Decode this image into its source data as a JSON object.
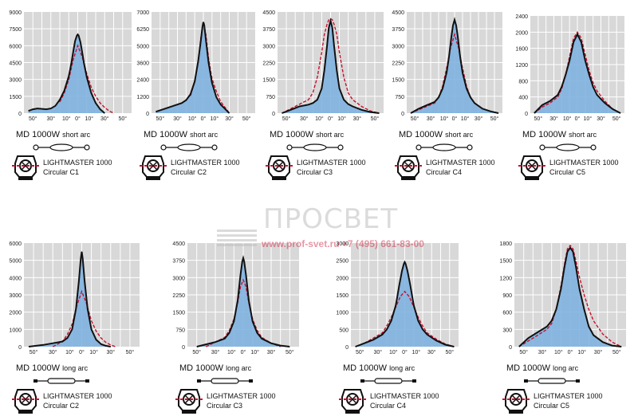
{
  "watermark": {
    "brand": "ПРОСВЕТ",
    "contact": "www.prof-svet.ru +7 (495) 661-83-00"
  },
  "colors": {
    "plot_bg": "#d8d8d8",
    "grid": "#ffffff",
    "fill": "#7fb3e0",
    "solid": "#111111",
    "dashed": "#c8102e",
    "watermark": "#bfbfbf"
  },
  "chart_data": [
    {
      "type": "area",
      "model": "MD 1000W",
      "arc": "short arc",
      "fixture": "LIGHTMASTER 1000",
      "reflector": "Circular C1",
      "lamp_icon": "short-arc-lamp-icon",
      "fixture_icon": "lightmaster-fixture-icon",
      "y_ticks": [
        0,
        1500,
        3000,
        4500,
        6000,
        7500,
        9000
      ],
      "x_ticks": [
        "50°",
        "30°",
        "10°",
        "0°",
        "10°",
        "30°",
        "50°"
      ],
      "ylim": [
        0,
        9000
      ],
      "xlim": [
        -60,
        60
      ],
      "series": [
        {
          "style": "solid",
          "x": [
            -55,
            -50,
            -45,
            -40,
            -35,
            -30,
            -25,
            -20,
            -15,
            -10,
            -7,
            -5,
            -3,
            -1,
            0,
            1,
            3,
            5,
            7,
            10,
            15,
            20,
            25,
            30
          ],
          "values": [
            200,
            350,
            420,
            380,
            350,
            420,
            650,
            1200,
            2000,
            3300,
            4500,
            5500,
            6400,
            6900,
            7000,
            6900,
            6300,
            5400,
            4400,
            3200,
            1800,
            900,
            350,
            0
          ]
        },
        {
          "style": "dashed",
          "x": [
            -20,
            -15,
            -10,
            -5,
            0,
            5,
            10,
            15,
            20,
            25,
            30,
            35,
            40
          ],
          "values": [
            1000,
            1800,
            3000,
            4800,
            6000,
            5000,
            3500,
            2300,
            1500,
            900,
            500,
            200,
            0
          ]
        }
      ]
    },
    {
      "type": "area",
      "model": "MD 1000W",
      "arc": "short arc",
      "fixture": "LIGHTMASTER 1000",
      "reflector": "Circular C2",
      "lamp_icon": "short-arc-lamp-icon",
      "fixture_icon": "lightmaster-fixture-icon",
      "y_ticks": [
        0,
        1200,
        2400,
        3600,
        5000,
        6250,
        7000
      ],
      "x_ticks": [
        "50°",
        "30°",
        "10°",
        "0°",
        "10°",
        "30°",
        "50°"
      ],
      "ylim": [
        0,
        7000
      ],
      "xlim": [
        -60,
        60
      ],
      "series": [
        {
          "style": "solid",
          "x": [
            -55,
            -45,
            -35,
            -25,
            -20,
            -15,
            -10,
            -6,
            -3,
            -1,
            0,
            1,
            3,
            6,
            10,
            15,
            20,
            25,
            30
          ],
          "values": [
            100,
            300,
            500,
            700,
            900,
            1300,
            2200,
            3600,
            5000,
            6000,
            6300,
            6100,
            5000,
            3500,
            2100,
            1100,
            600,
            300,
            0
          ]
        },
        {
          "style": "dashed",
          "x": [
            -15,
            -10,
            -6,
            -3,
            0,
            3,
            6,
            10,
            15,
            20,
            25,
            30
          ],
          "values": [
            1200,
            2200,
            3500,
            5200,
            6300,
            5400,
            3800,
            2400,
            1500,
            800,
            400,
            0
          ]
        }
      ]
    },
    {
      "type": "area",
      "model": "MD 1000W",
      "arc": "short arc",
      "fixture": "LIGHTMASTER 1000",
      "reflector": "Circular C3",
      "lamp_icon": "short-arc-lamp-icon",
      "fixture_icon": "lightmaster-fixture-icon",
      "y_ticks": [
        0,
        750,
        1500,
        2250,
        3000,
        3750,
        4500
      ],
      "x_ticks": [
        "50°",
        "30°",
        "10°",
        "0°",
        "10°",
        "30°",
        "50°"
      ],
      "ylim": [
        0,
        4500
      ],
      "xlim": [
        -60,
        60
      ],
      "series": [
        {
          "style": "solid",
          "x": [
            -55,
            -45,
            -35,
            -25,
            -20,
            -15,
            -10,
            -7,
            -4,
            -2,
            0,
            2,
            4,
            7,
            10,
            15,
            20,
            25,
            35,
            45,
            55
          ],
          "values": [
            0,
            150,
            300,
            380,
            450,
            600,
            1100,
            1900,
            3000,
            3800,
            4100,
            3800,
            3000,
            1900,
            1100,
            600,
            400,
            300,
            150,
            50,
            0
          ]
        },
        {
          "style": "dashed",
          "x": [
            -55,
            -45,
            -35,
            -25,
            -20,
            -15,
            -10,
            -7,
            -4,
            -2,
            0,
            2,
            4,
            7,
            10,
            15,
            20,
            25,
            35,
            45,
            55
          ],
          "values": [
            0,
            200,
            400,
            600,
            900,
            1600,
            2700,
            3500,
            3950,
            4150,
            4200,
            4150,
            3950,
            3500,
            2700,
            1600,
            900,
            600,
            300,
            100,
            0
          ]
        }
      ]
    },
    {
      "type": "area",
      "model": "MD 1000W",
      "arc": "short arc",
      "fixture": "LIGHTMASTER 1000",
      "reflector": "Circular C4",
      "lamp_icon": "short-arc-lamp-icon",
      "fixture_icon": "lightmaster-fixture-icon",
      "y_ticks": [
        0,
        750,
        1500,
        2250,
        3000,
        3750,
        4500
      ],
      "x_ticks": [
        "50°",
        "30°",
        "10°",
        "0°",
        "10°",
        "30°",
        "50°"
      ],
      "ylim": [
        0,
        4500
      ],
      "xlim": [
        -60,
        60
      ],
      "series": [
        {
          "style": "solid",
          "x": [
            -55,
            -45,
            -35,
            -25,
            -20,
            -15,
            -10,
            -7,
            -4,
            -2,
            0,
            2,
            4,
            7,
            10,
            15,
            20,
            25,
            35,
            45,
            55
          ],
          "values": [
            0,
            200,
            350,
            500,
            700,
            1100,
            1800,
            2500,
            3400,
            3900,
            4150,
            3900,
            3400,
            2500,
            1800,
            1100,
            700,
            450,
            200,
            80,
            0
          ]
        },
        {
          "style": "dashed",
          "x": [
            -55,
            -45,
            -35,
            -25,
            -20,
            -15,
            -10,
            -5,
            0,
            5,
            10,
            15,
            20,
            25,
            35,
            45,
            55
          ],
          "values": [
            0,
            150,
            300,
            450,
            700,
            1200,
            2000,
            2900,
            3500,
            2900,
            2000,
            1200,
            700,
            450,
            200,
            80,
            0
          ]
        }
      ]
    },
    {
      "type": "area",
      "model": "MD 1000W",
      "arc": "short arc",
      "fixture": "LIGHTMASTER 1000",
      "reflector": "Circular C5",
      "lamp_icon": "short-arc-lamp-icon",
      "fixture_icon": "lightmaster-fixture-icon",
      "y_ticks": [
        0,
        400,
        800,
        1200,
        1600,
        2000,
        2400
      ],
      "x_ticks": [
        "50°",
        "30°",
        "10°",
        "0°",
        "10°",
        "30°",
        "50°"
      ],
      "ylim": [
        0,
        2400
      ],
      "xlim": [
        -60,
        60
      ],
      "series": [
        {
          "style": "solid",
          "x": [
            -55,
            -45,
            -35,
            -25,
            -20,
            -15,
            -10,
            -5,
            0,
            5,
            10,
            15,
            20,
            25,
            35,
            45,
            55
          ],
          "values": [
            0,
            200,
            300,
            450,
            650,
            950,
            1300,
            1750,
            1950,
            1750,
            1300,
            950,
            650,
            450,
            250,
            100,
            0
          ]
        },
        {
          "style": "dashed",
          "x": [
            -55,
            -45,
            -35,
            -25,
            -20,
            -15,
            -10,
            -5,
            0,
            5,
            10,
            15,
            20,
            25,
            35,
            45,
            55
          ],
          "values": [
            0,
            150,
            250,
            400,
            600,
            950,
            1400,
            1850,
            2000,
            1850,
            1450,
            1050,
            750,
            550,
            300,
            100,
            0
          ]
        }
      ]
    },
    {
      "type": "area",
      "model": "MD 1000W",
      "arc": "long arc",
      "fixture": "LIGHTMASTER 1000",
      "reflector": "Circular C2",
      "lamp_icon": "long-arc-lamp-icon",
      "fixture_icon": "lightmaster-fixture-icon",
      "y_ticks": [
        0,
        1000,
        2000,
        3000,
        4000,
        5000,
        6000
      ],
      "x_ticks": [
        "50°",
        "30°",
        "10°",
        "0°",
        "10°",
        "30°",
        "50°"
      ],
      "ylim": [
        0,
        6000
      ],
      "xlim": [
        -60,
        60
      ],
      "series": [
        {
          "style": "solid",
          "x": [
            -55,
            -40,
            -30,
            -20,
            -15,
            -10,
            -6,
            -3,
            -1,
            0,
            1,
            3,
            6,
            10,
            15,
            20,
            25,
            30
          ],
          "values": [
            0,
            100,
            200,
            300,
            500,
            1000,
            2200,
            3800,
            5100,
            5500,
            5100,
            3800,
            2200,
            1000,
            400,
            150,
            50,
            0
          ]
        },
        {
          "style": "dashed",
          "x": [
            -30,
            -20,
            -15,
            -10,
            -5,
            0,
            5,
            10,
            15,
            20,
            25,
            30,
            35
          ],
          "values": [
            0,
            300,
            700,
            1300,
            2400,
            3200,
            2500,
            1500,
            900,
            500,
            250,
            100,
            0
          ]
        }
      ]
    },
    {
      "type": "area",
      "model": "MD 1000W",
      "arc": "long arc",
      "fixture": "LIGHTMASTER 1000",
      "reflector": "Circular C3",
      "lamp_icon": "long-arc-lamp-icon",
      "fixture_icon": "lightmaster-fixture-icon",
      "y_ticks": [
        0,
        750,
        1500,
        2250,
        3000,
        3750,
        4500
      ],
      "x_ticks": [
        "50°",
        "30°",
        "10°",
        "0°",
        "10°",
        "30°",
        "50°"
      ],
      "ylim": [
        0,
        4500
      ],
      "xlim": [
        -60,
        60
      ],
      "series": [
        {
          "style": "solid",
          "x": [
            -50,
            -40,
            -30,
            -20,
            -15,
            -10,
            -6,
            -3,
            -1,
            0,
            1,
            3,
            6,
            10,
            15,
            20,
            30,
            40,
            50
          ],
          "values": [
            0,
            100,
            200,
            350,
            600,
            1100,
            2000,
            3100,
            3700,
            3850,
            3700,
            3100,
            2000,
            1100,
            600,
            350,
            150,
            50,
            0
          ]
        },
        {
          "style": "dashed",
          "x": [
            -40,
            -30,
            -20,
            -15,
            -10,
            -6,
            -3,
            0,
            3,
            6,
            10,
            15,
            20,
            30,
            40
          ],
          "values": [
            0,
            200,
            400,
            700,
            1200,
            1900,
            2600,
            2900,
            2600,
            1900,
            1200,
            700,
            400,
            150,
            0
          ]
        }
      ]
    },
    {
      "type": "area",
      "model": "MD 1000W",
      "arc": "long arc",
      "fixture": "LIGHTMASTER 1000",
      "reflector": "Circular C4",
      "lamp_icon": "long-arc-lamp-icon",
      "fixture_icon": "lightmaster-fixture-icon",
      "y_ticks": [
        0,
        500,
        1000,
        1500,
        2000,
        2500,
        3000
      ],
      "x_ticks": [
        "50°",
        "30°",
        "10°",
        "0°",
        "10°",
        "30°",
        "50°"
      ],
      "ylim": [
        0,
        3000
      ],
      "xlim": [
        -60,
        60
      ],
      "series": [
        {
          "style": "solid",
          "x": [
            -55,
            -45,
            -35,
            -25,
            -20,
            -15,
            -10,
            -6,
            -3,
            -1,
            0,
            1,
            3,
            6,
            10,
            15,
            20,
            25,
            35,
            45,
            55
          ],
          "values": [
            0,
            100,
            200,
            350,
            500,
            750,
            1200,
            1800,
            2200,
            2400,
            2450,
            2400,
            2200,
            1800,
            1200,
            750,
            500,
            350,
            180,
            60,
            0
          ]
        },
        {
          "style": "dashed",
          "x": [
            -55,
            -45,
            -35,
            -25,
            -20,
            -15,
            -10,
            -5,
            0,
            5,
            10,
            15,
            20,
            25,
            35,
            45,
            55
          ],
          "values": [
            0,
            100,
            250,
            400,
            600,
            850,
            1150,
            1450,
            1600,
            1450,
            1150,
            850,
            600,
            400,
            220,
            80,
            0
          ]
        }
      ]
    },
    {
      "type": "area",
      "model": "MD 1000W",
      "arc": "long arc",
      "fixture": "LIGHTMASTER 1000",
      "reflector": "Circular C5",
      "lamp_icon": "long-arc-lamp-icon",
      "fixture_icon": "lightmaster-fixture-icon",
      "y_ticks": [
        0,
        300,
        600,
        900,
        1200,
        1500,
        1800
      ],
      "x_ticks": [
        "50°",
        "30°",
        "10°",
        "0°",
        "10°",
        "30°",
        "50°"
      ],
      "ylim": [
        0,
        1800
      ],
      "xlim": [
        -60,
        60
      ],
      "series": [
        {
          "style": "solid",
          "x": [
            -55,
            -45,
            -35,
            -25,
            -20,
            -15,
            -10,
            -6,
            -3,
            0,
            3,
            6,
            10,
            15,
            20,
            25,
            35,
            45,
            55
          ],
          "values": [
            0,
            150,
            250,
            350,
            450,
            650,
            1000,
            1400,
            1650,
            1720,
            1650,
            1400,
            1000,
            650,
            350,
            200,
            80,
            20,
            0
          ]
        },
        {
          "style": "dashed",
          "x": [
            -55,
            -45,
            -35,
            -25,
            -20,
            -15,
            -10,
            -6,
            -3,
            0,
            3,
            6,
            10,
            15,
            20,
            25,
            35,
            45,
            55
          ],
          "values": [
            0,
            100,
            200,
            300,
            400,
            650,
            1050,
            1450,
            1700,
            1760,
            1700,
            1500,
            1200,
            900,
            650,
            450,
            220,
            80,
            0
          ]
        }
      ]
    }
  ]
}
